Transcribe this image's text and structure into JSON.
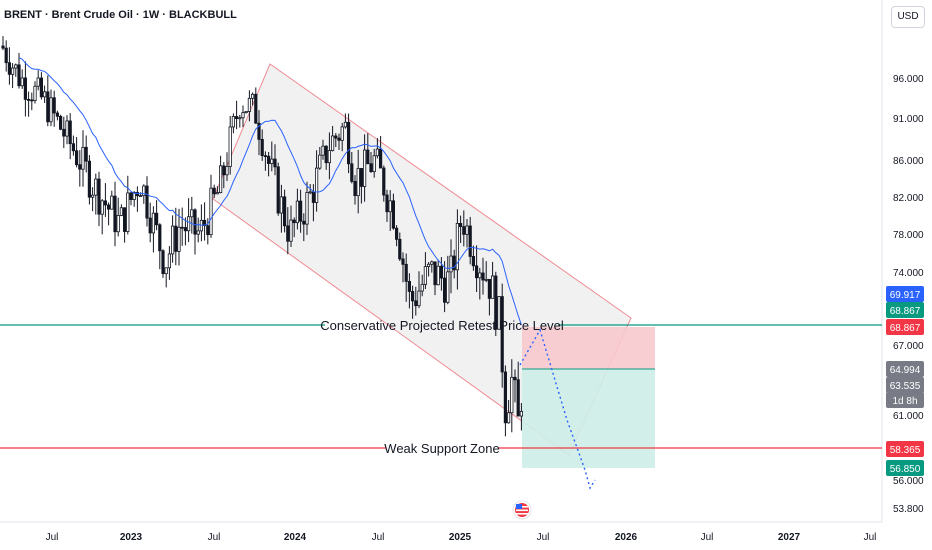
{
  "header": {
    "symbol_title": "BRENT · Brent Crude Oil · 1W · BLACKBULL",
    "currency": "USD"
  },
  "chart_data": {
    "type": "candlestick",
    "symbol": "BRENT",
    "interval": "1W",
    "x_tick_labels": [
      "Jul",
      "2023",
      "Jul",
      "2024",
      "Jul",
      "2025",
      "Jul",
      "2026",
      "Jul",
      "2027",
      "Jul"
    ],
    "y_tick_labels": [
      96.0,
      91.0,
      86.0,
      82.0,
      78.0,
      74.0,
      67.0,
      61.0,
      56.0,
      53.8
    ],
    "y_range": [
      52.8,
      103
    ],
    "price_labels": [
      {
        "value": "69.917",
        "color": "#2962ff"
      },
      {
        "value": "68.867",
        "color": "#089981"
      },
      {
        "value": "68.867",
        "color": "#f23645"
      },
      {
        "value": "64.994",
        "color": "#787b86"
      },
      {
        "value": "63.535",
        "color": "#787b86"
      },
      {
        "value": "1d 8h",
        "color": "#787b86"
      },
      {
        "value": "58.365",
        "color": "#f23645"
      },
      {
        "value": "56.850",
        "color": "#089981"
      }
    ],
    "annotations": [
      {
        "text": "Conservative Projected Retest Price Level",
        "price": 68.867,
        "color": "#089981"
      },
      {
        "text": "Weak Support Zone",
        "price": 58.365,
        "color": "#f23645"
      }
    ],
    "position": {
      "entry": 64.994,
      "stop": 68.867,
      "target": 56.85
    },
    "colors": {
      "up": "#131722",
      "down": "#131722",
      "ma": "#2962ff",
      "channel": "#f7a1a8",
      "projection": "#2962ff"
    }
  }
}
